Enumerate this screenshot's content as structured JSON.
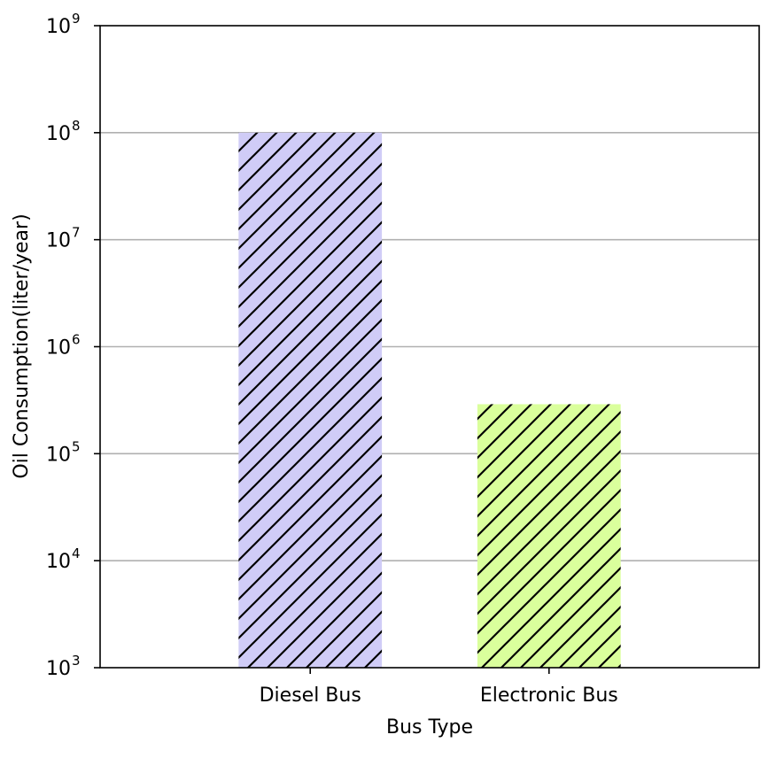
{
  "chart_data": {
    "type": "bar",
    "categories": [
      "Diesel Bus",
      "Electronic Bus"
    ],
    "values": [
      100000000,
      290000
    ],
    "xlabel": "Bus Type",
    "ylabel": "Oil Consumption(liter/year)",
    "yscale": "log",
    "ylim": [
      1000,
      1000000000
    ],
    "yticks": [
      {
        "base": "10",
        "exp": "3",
        "value": 1000
      },
      {
        "base": "10",
        "exp": "4",
        "value": 10000
      },
      {
        "base": "10",
        "exp": "5",
        "value": 100000
      },
      {
        "base": "10",
        "exp": "6",
        "value": 1000000
      },
      {
        "base": "10",
        "exp": "7",
        "value": 10000000
      },
      {
        "base": "10",
        "exp": "8",
        "value": 100000000
      },
      {
        "base": "10",
        "exp": "9",
        "value": 1000000000
      }
    ],
    "grid": "horizontal",
    "legend": "none",
    "bar_hatch": "diagonal",
    "colors": [
      "#d0ccf7",
      "#daff9c"
    ],
    "hatch_color": "#000000"
  }
}
